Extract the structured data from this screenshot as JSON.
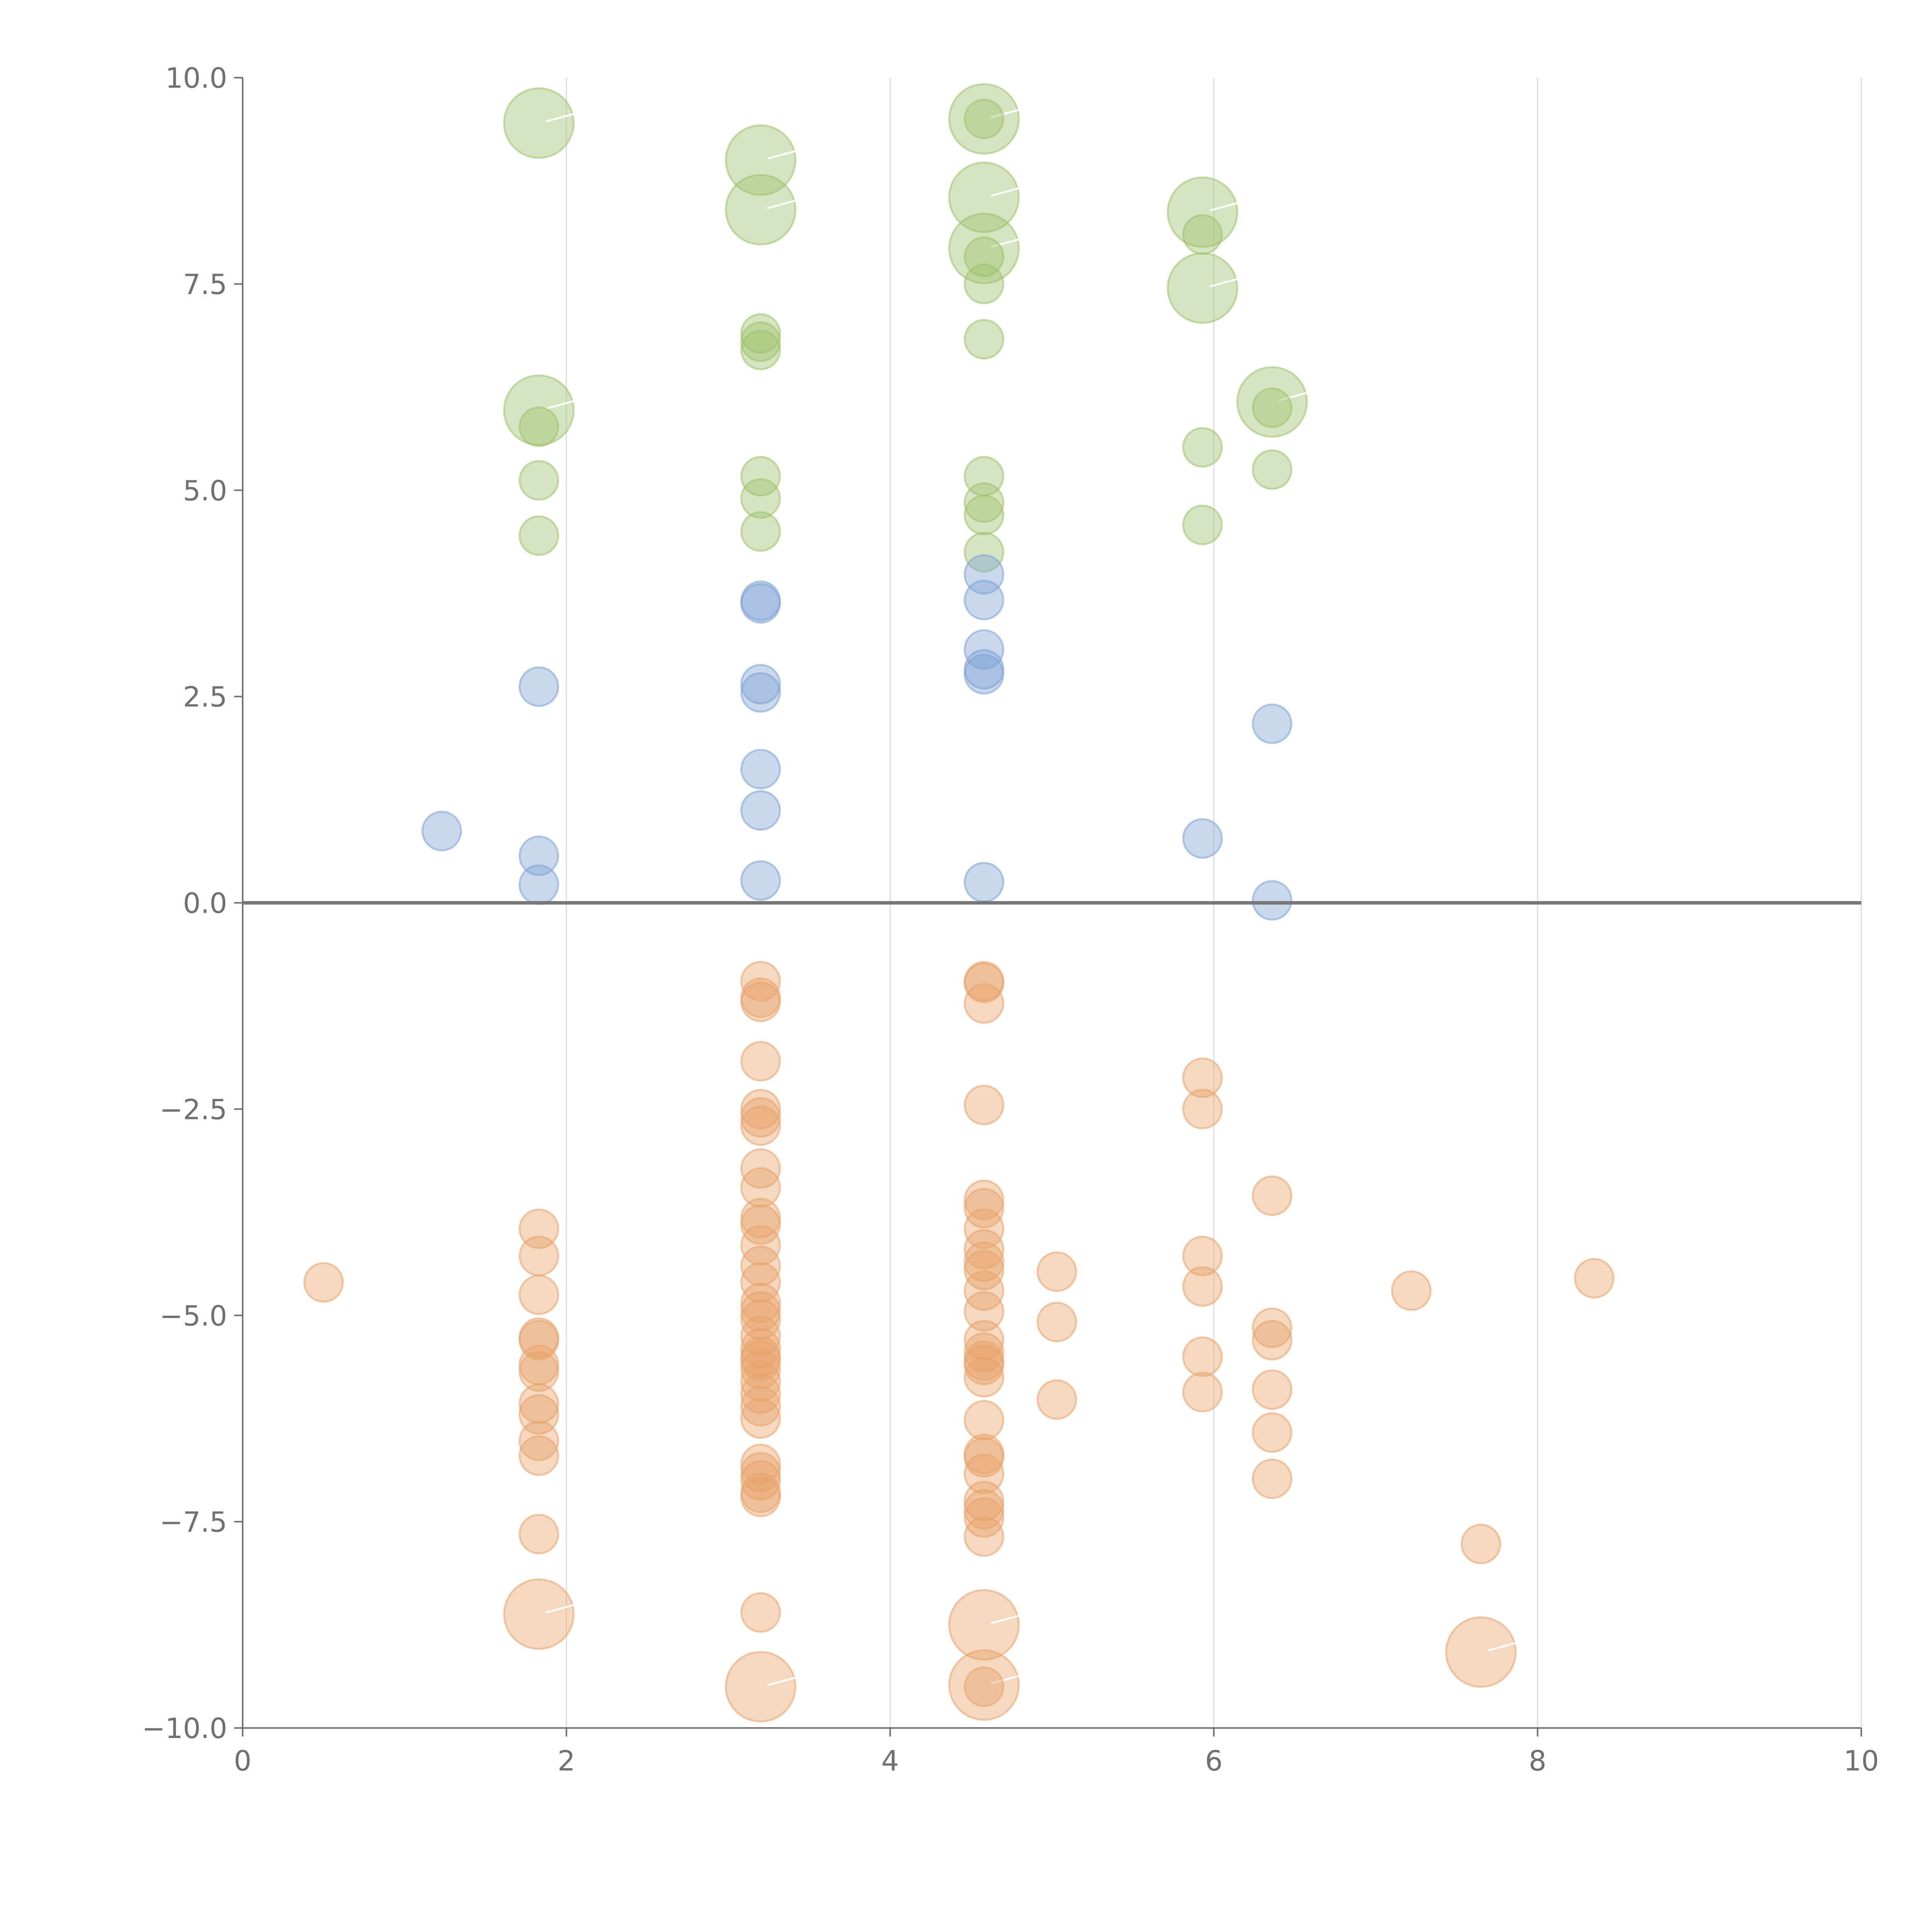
{
  "chart_data": {
    "type": "scatter",
    "subtype": "bubble",
    "title": "",
    "xlabel": "",
    "ylabel": "",
    "xlim": [
      0,
      10
    ],
    "ylim": [
      -10,
      10
    ],
    "x_ticks": [
      0,
      2,
      4,
      6,
      8,
      10
    ],
    "y_ticks": [
      -10,
      -7.5,
      -5,
      -2.5,
      0,
      2.5,
      5,
      7.5,
      10
    ],
    "x_tick_labels": [
      "0",
      "2",
      "4",
      "6",
      "8",
      "10"
    ],
    "y_tick_labels": [
      "−10.0",
      "−7.5",
      "−5.0",
      "−2.5",
      "0.0",
      "2.5",
      "5.0",
      "7.5",
      "10.0"
    ],
    "grid": "vertical",
    "reference_line_y": 0,
    "legend": "none",
    "size_unit": "relative",
    "series": [
      {
        "name": "green",
        "color": "#9dc16b",
        "points": [
          {
            "x": 1.83,
            "y": 9.45,
            "s": 3
          },
          {
            "x": 1.83,
            "y": 5.97,
            "s": 3
          },
          {
            "x": 1.83,
            "y": 5.77,
            "s": 1
          },
          {
            "x": 1.83,
            "y": 5.12,
            "s": 1
          },
          {
            "x": 1.83,
            "y": 4.45,
            "s": 1
          },
          {
            "x": 3.2,
            "y": 9.0,
            "s": 3
          },
          {
            "x": 3.2,
            "y": 8.4,
            "s": 3
          },
          {
            "x": 3.2,
            "y": 6.9,
            "s": 1
          },
          {
            "x": 3.2,
            "y": 6.8,
            "s": 1
          },
          {
            "x": 3.2,
            "y": 6.7,
            "s": 1
          },
          {
            "x": 3.2,
            "y": 5.17,
            "s": 1
          },
          {
            "x": 3.2,
            "y": 4.9,
            "s": 1
          },
          {
            "x": 3.2,
            "y": 4.5,
            "s": 1
          },
          {
            "x": 4.58,
            "y": 9.5,
            "s": 3
          },
          {
            "x": 4.58,
            "y": 9.5,
            "s": 1
          },
          {
            "x": 4.58,
            "y": 8.55,
            "s": 3
          },
          {
            "x": 4.58,
            "y": 7.93,
            "s": 3
          },
          {
            "x": 4.58,
            "y": 7.83,
            "s": 1
          },
          {
            "x": 4.58,
            "y": 7.5,
            "s": 1
          },
          {
            "x": 4.58,
            "y": 6.83,
            "s": 1
          },
          {
            "x": 4.58,
            "y": 5.17,
            "s": 1
          },
          {
            "x": 4.58,
            "y": 4.85,
            "s": 1
          },
          {
            "x": 4.58,
            "y": 4.7,
            "s": 1
          },
          {
            "x": 4.58,
            "y": 4.25,
            "s": 1
          },
          {
            "x": 5.93,
            "y": 8.37,
            "s": 3
          },
          {
            "x": 5.93,
            "y": 8.1,
            "s": 1
          },
          {
            "x": 5.93,
            "y": 7.45,
            "s": 3
          },
          {
            "x": 5.93,
            "y": 5.52,
            "s": 1
          },
          {
            "x": 5.93,
            "y": 4.58,
            "s": 1
          },
          {
            "x": 6.36,
            "y": 6.07,
            "s": 3
          },
          {
            "x": 6.36,
            "y": 6.0,
            "s": 1
          },
          {
            "x": 6.36,
            "y": 5.25,
            "s": 1
          }
        ]
      },
      {
        "name": "blue",
        "color": "#7ea1d4",
        "points": [
          {
            "x": 1.23,
            "y": 0.87,
            "s": 1
          },
          {
            "x": 1.83,
            "y": 2.62,
            "s": 1
          },
          {
            "x": 1.83,
            "y": 0.57,
            "s": 1
          },
          {
            "x": 1.83,
            "y": 0.22,
            "s": 1
          },
          {
            "x": 3.2,
            "y": 3.66,
            "s": 1
          },
          {
            "x": 3.2,
            "y": 3.63,
            "s": 1
          },
          {
            "x": 3.2,
            "y": 2.65,
            "s": 1
          },
          {
            "x": 3.2,
            "y": 2.55,
            "s": 1
          },
          {
            "x": 3.2,
            "y": 1.62,
            "s": 1
          },
          {
            "x": 3.2,
            "y": 1.12,
            "s": 1
          },
          {
            "x": 3.2,
            "y": 0.27,
            "s": 1
          },
          {
            "x": 4.58,
            "y": 3.98,
            "s": 1
          },
          {
            "x": 4.58,
            "y": 3.67,
            "s": 1
          },
          {
            "x": 4.58,
            "y": 3.07,
            "s": 1
          },
          {
            "x": 4.58,
            "y": 2.83,
            "s": 1
          },
          {
            "x": 4.58,
            "y": 2.77,
            "s": 1
          },
          {
            "x": 4.58,
            "y": 0.25,
            "s": 1
          },
          {
            "x": 5.93,
            "y": 0.78,
            "s": 1
          },
          {
            "x": 6.36,
            "y": 2.17,
            "s": 1
          },
          {
            "x": 6.36,
            "y": 0.03,
            "s": 1
          }
        ]
      },
      {
        "name": "orange",
        "color": "#e8a36a",
        "points": [
          {
            "x": 0.5,
            "y": -4.6,
            "s": 1
          },
          {
            "x": 1.83,
            "y": -3.95,
            "s": 1
          },
          {
            "x": 1.83,
            "y": -4.28,
            "s": 1
          },
          {
            "x": 1.83,
            "y": -4.75,
            "s": 1
          },
          {
            "x": 1.83,
            "y": -5.27,
            "s": 1
          },
          {
            "x": 1.83,
            "y": -5.3,
            "s": 1
          },
          {
            "x": 1.83,
            "y": -5.6,
            "s": 1
          },
          {
            "x": 1.83,
            "y": -5.68,
            "s": 1
          },
          {
            "x": 1.83,
            "y": -6.07,
            "s": 1
          },
          {
            "x": 1.83,
            "y": -6.2,
            "s": 1
          },
          {
            "x": 1.83,
            "y": -6.52,
            "s": 1
          },
          {
            "x": 1.83,
            "y": -6.7,
            "s": 1
          },
          {
            "x": 1.83,
            "y": -7.65,
            "s": 1
          },
          {
            "x": 1.83,
            "y": -8.62,
            "s": 3
          },
          {
            "x": 3.2,
            "y": -0.95,
            "s": 1
          },
          {
            "x": 3.2,
            "y": -1.15,
            "s": 1
          },
          {
            "x": 3.2,
            "y": -1.2,
            "s": 1
          },
          {
            "x": 3.2,
            "y": -1.92,
            "s": 1
          },
          {
            "x": 3.2,
            "y": -2.5,
            "s": 1
          },
          {
            "x": 3.2,
            "y": -2.6,
            "s": 1
          },
          {
            "x": 3.2,
            "y": -2.7,
            "s": 1
          },
          {
            "x": 3.2,
            "y": -3.22,
            "s": 1
          },
          {
            "x": 3.2,
            "y": -3.45,
            "s": 1
          },
          {
            "x": 3.2,
            "y": -3.82,
            "s": 1
          },
          {
            "x": 3.2,
            "y": -3.9,
            "s": 1
          },
          {
            "x": 3.2,
            "y": -4.15,
            "s": 1
          },
          {
            "x": 3.2,
            "y": -4.4,
            "s": 1
          },
          {
            "x": 3.2,
            "y": -4.6,
            "s": 1
          },
          {
            "x": 3.2,
            "y": -4.85,
            "s": 1
          },
          {
            "x": 3.2,
            "y": -4.95,
            "s": 1
          },
          {
            "x": 3.2,
            "y": -5.05,
            "s": 1
          },
          {
            "x": 3.2,
            "y": -5.25,
            "s": 1
          },
          {
            "x": 3.2,
            "y": -5.4,
            "s": 1
          },
          {
            "x": 3.2,
            "y": -5.5,
            "s": 1
          },
          {
            "x": 3.2,
            "y": -5.55,
            "s": 1
          },
          {
            "x": 3.2,
            "y": -5.65,
            "s": 1
          },
          {
            "x": 3.2,
            "y": -5.8,
            "s": 1
          },
          {
            "x": 3.2,
            "y": -5.95,
            "s": 1
          },
          {
            "x": 3.2,
            "y": -6.1,
            "s": 1
          },
          {
            "x": 3.2,
            "y": -6.25,
            "s": 1
          },
          {
            "x": 3.2,
            "y": -6.8,
            "s": 1
          },
          {
            "x": 3.2,
            "y": -6.9,
            "s": 1
          },
          {
            "x": 3.2,
            "y": -7.0,
            "s": 1
          },
          {
            "x": 3.2,
            "y": -7.15,
            "s": 1
          },
          {
            "x": 3.2,
            "y": -7.2,
            "s": 1
          },
          {
            "x": 3.2,
            "y": -8.6,
            "s": 1
          },
          {
            "x": 3.2,
            "y": -9.5,
            "s": 3
          },
          {
            "x": 4.58,
            "y": -0.95,
            "s": 1
          },
          {
            "x": 4.58,
            "y": -0.97,
            "s": 1
          },
          {
            "x": 4.58,
            "y": -1.22,
            "s": 1
          },
          {
            "x": 4.58,
            "y": -2.45,
            "s": 1
          },
          {
            "x": 4.58,
            "y": -3.6,
            "s": 1
          },
          {
            "x": 4.58,
            "y": -3.7,
            "s": 1
          },
          {
            "x": 4.58,
            "y": -3.95,
            "s": 1
          },
          {
            "x": 4.58,
            "y": -4.2,
            "s": 1
          },
          {
            "x": 4.58,
            "y": -4.35,
            "s": 1
          },
          {
            "x": 4.58,
            "y": -4.45,
            "s": 1
          },
          {
            "x": 4.58,
            "y": -4.7,
            "s": 1
          },
          {
            "x": 4.58,
            "y": -4.95,
            "s": 1
          },
          {
            "x": 4.58,
            "y": -5.3,
            "s": 1
          },
          {
            "x": 4.58,
            "y": -5.45,
            "s": 1
          },
          {
            "x": 4.58,
            "y": -5.55,
            "s": 1
          },
          {
            "x": 4.58,
            "y": -5.6,
            "s": 1
          },
          {
            "x": 4.58,
            "y": -5.75,
            "s": 1
          },
          {
            "x": 4.58,
            "y": -6.27,
            "s": 1
          },
          {
            "x": 4.58,
            "y": -6.68,
            "s": 1
          },
          {
            "x": 4.58,
            "y": -6.72,
            "s": 1
          },
          {
            "x": 4.58,
            "y": -6.92,
            "s": 1
          },
          {
            "x": 4.58,
            "y": -7.25,
            "s": 1
          },
          {
            "x": 4.58,
            "y": -7.35,
            "s": 1
          },
          {
            "x": 4.58,
            "y": -7.45,
            "s": 1
          },
          {
            "x": 4.58,
            "y": -7.68,
            "s": 1
          },
          {
            "x": 4.58,
            "y": -8.75,
            "s": 3
          },
          {
            "x": 4.58,
            "y": -9.48,
            "s": 3
          },
          {
            "x": 4.58,
            "y": -9.5,
            "s": 1
          },
          {
            "x": 5.03,
            "y": -4.47,
            "s": 1
          },
          {
            "x": 5.03,
            "y": -5.08,
            "s": 1
          },
          {
            "x": 5.03,
            "y": -6.02,
            "s": 1
          },
          {
            "x": 5.93,
            "y": -2.12,
            "s": 1
          },
          {
            "x": 5.93,
            "y": -2.5,
            "s": 1
          },
          {
            "x": 5.93,
            "y": -4.28,
            "s": 1
          },
          {
            "x": 5.93,
            "y": -4.65,
            "s": 1
          },
          {
            "x": 5.93,
            "y": -5.5,
            "s": 1
          },
          {
            "x": 5.93,
            "y": -5.93,
            "s": 1
          },
          {
            "x": 6.36,
            "y": -3.55,
            "s": 1
          },
          {
            "x": 6.36,
            "y": -5.15,
            "s": 1
          },
          {
            "x": 6.36,
            "y": -5.3,
            "s": 1
          },
          {
            "x": 6.36,
            "y": -5.9,
            "s": 1
          },
          {
            "x": 6.36,
            "y": -6.42,
            "s": 1
          },
          {
            "x": 6.36,
            "y": -6.98,
            "s": 1
          },
          {
            "x": 7.22,
            "y": -4.7,
            "s": 1
          },
          {
            "x": 7.65,
            "y": -7.77,
            "s": 1
          },
          {
            "x": 7.65,
            "y": -9.08,
            "s": 3
          },
          {
            "x": 8.35,
            "y": -4.55,
            "s": 1
          }
        ]
      }
    ]
  }
}
